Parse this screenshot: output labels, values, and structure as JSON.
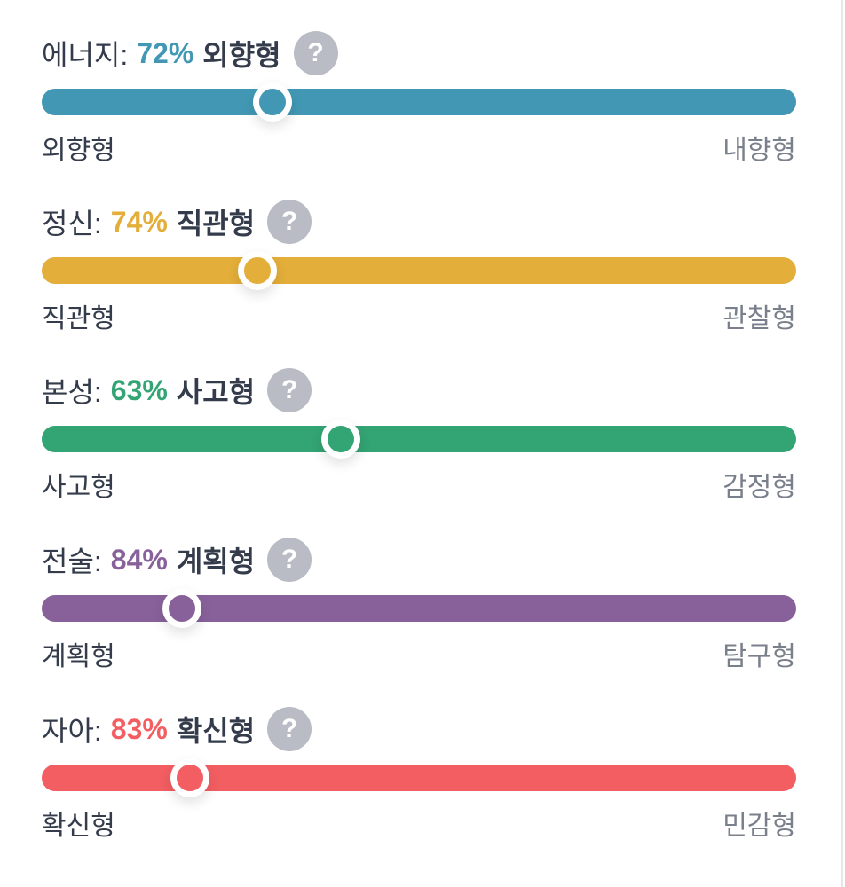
{
  "traits": [
    {
      "label": "에너지:",
      "percent": "72%",
      "value": 72,
      "trait": "외향형",
      "left": "외향형",
      "right": "내향형",
      "color": "#4298b4"
    },
    {
      "label": "정신:",
      "percent": "74%",
      "value": 74,
      "trait": "직관형",
      "left": "직관형",
      "right": "관찰형",
      "color": "#e4ae3a"
    },
    {
      "label": "본성:",
      "percent": "63%",
      "value": 63,
      "trait": "사고형",
      "left": "사고형",
      "right": "감정형",
      "color": "#33a474"
    },
    {
      "label": "전술:",
      "percent": "84%",
      "value": 84,
      "trait": "계획형",
      "left": "계획형",
      "right": "탐구형",
      "color": "#88619a"
    },
    {
      "label": "자아:",
      "percent": "83%",
      "value": 83,
      "trait": "확신형",
      "left": "확신형",
      "right": "민감형",
      "color": "#f25e62"
    }
  ],
  "help_icon": "question-mark-icon",
  "help_glyph": "?"
}
